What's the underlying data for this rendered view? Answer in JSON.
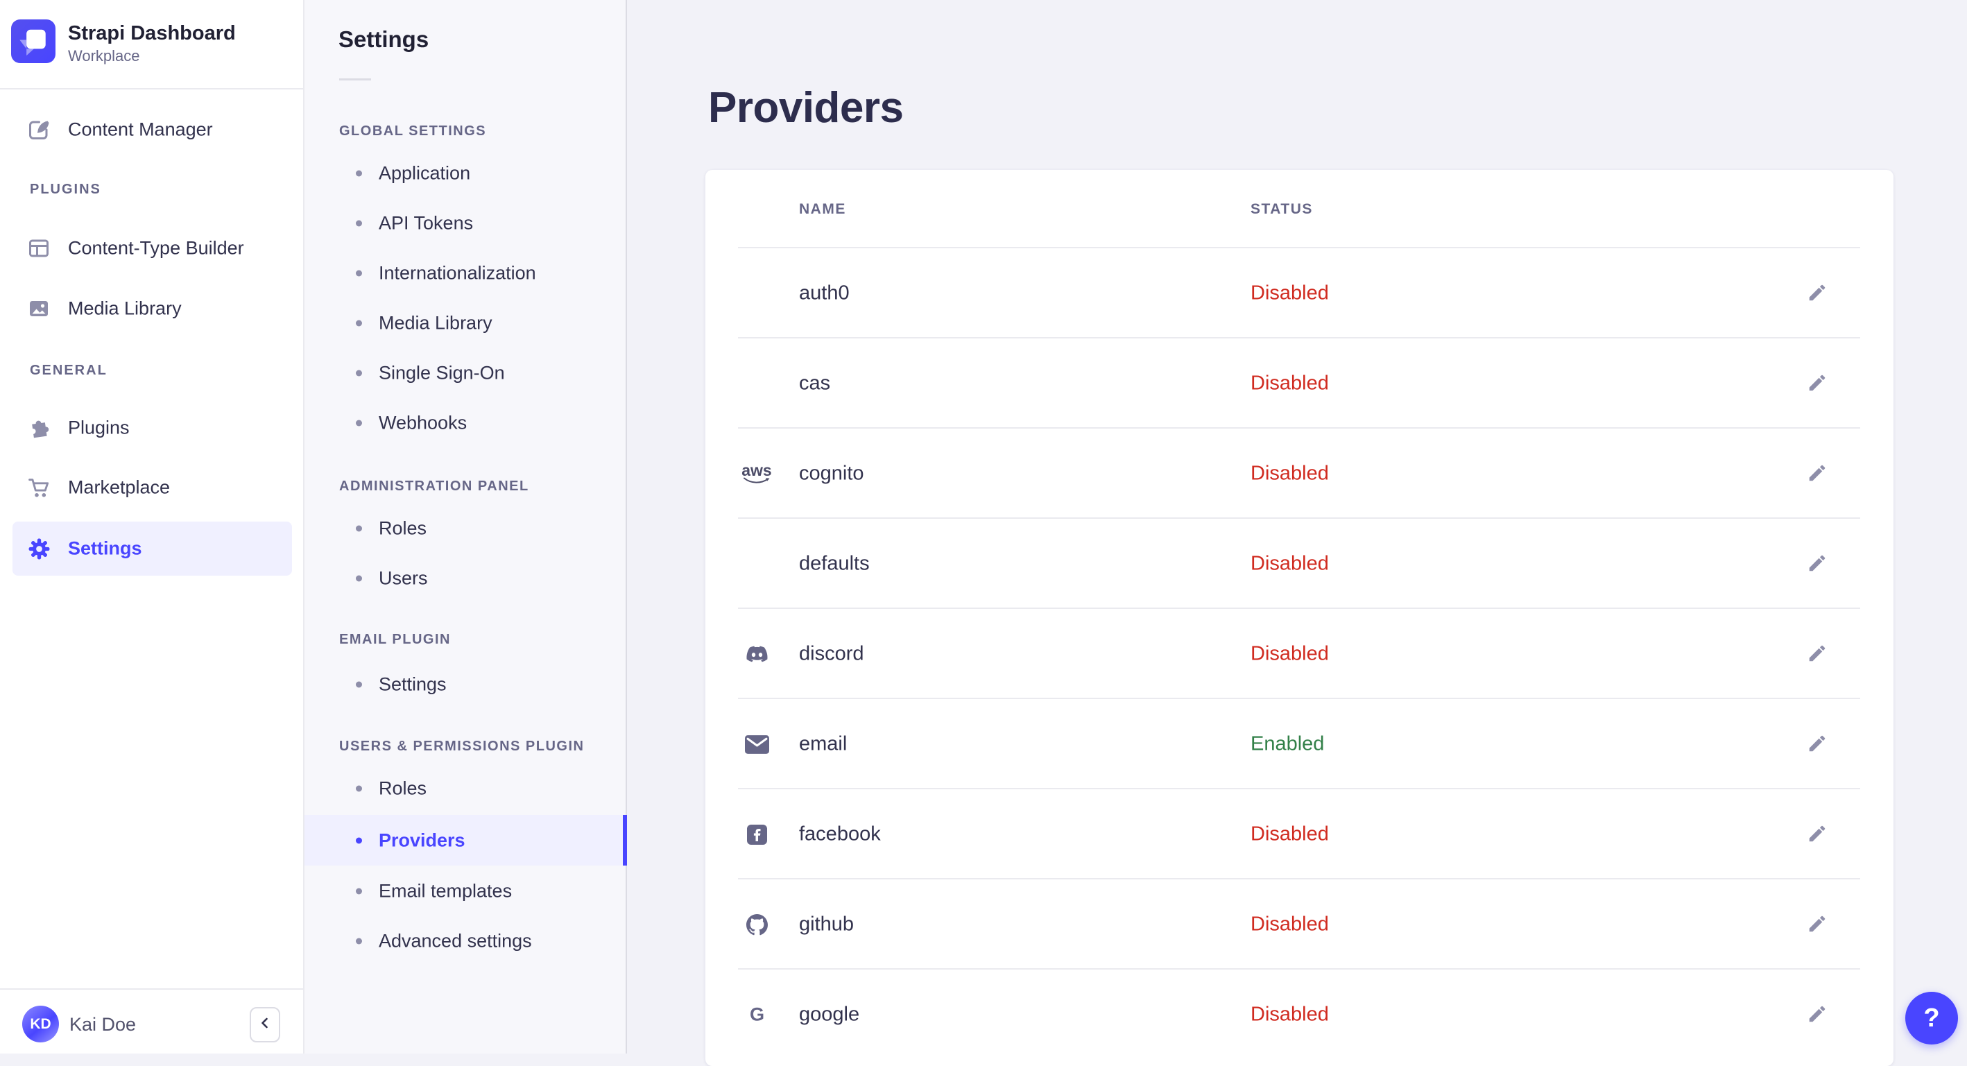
{
  "app": {
    "name": "Strapi Dashboard",
    "workspace": "Workplace"
  },
  "main_nav": {
    "top_items": [
      {
        "label": "Content Manager",
        "icon": "content-manager-icon"
      }
    ],
    "sections": [
      {
        "label": "PLUGINS",
        "items": [
          {
            "label": "Content-Type Builder",
            "icon": "content-type-builder-icon"
          },
          {
            "label": "Media Library",
            "icon": "media-library-icon"
          }
        ]
      },
      {
        "label": "GENERAL",
        "items": [
          {
            "label": "Plugins",
            "icon": "plugins-icon"
          },
          {
            "label": "Marketplace",
            "icon": "marketplace-icon"
          },
          {
            "label": "Settings",
            "icon": "settings-icon",
            "active": true
          }
        ]
      }
    ],
    "user": {
      "name": "Kai Doe",
      "initials": "KD"
    },
    "collapse_icon": "chevron-left-icon"
  },
  "subnav": {
    "title": "Settings",
    "sections": [
      {
        "label": "GLOBAL SETTINGS",
        "items": [
          {
            "label": "Application"
          },
          {
            "label": "API Tokens"
          },
          {
            "label": "Internationalization"
          },
          {
            "label": "Media Library"
          },
          {
            "label": "Single Sign-On"
          },
          {
            "label": "Webhooks"
          }
        ]
      },
      {
        "label": "ADMINISTRATION PANEL",
        "items": [
          {
            "label": "Roles"
          },
          {
            "label": "Users"
          }
        ]
      },
      {
        "label": "EMAIL PLUGIN",
        "items": [
          {
            "label": "Settings"
          }
        ]
      },
      {
        "label": "USERS & PERMISSIONS PLUGIN",
        "items": [
          {
            "label": "Roles"
          },
          {
            "label": "Providers",
            "active": true
          },
          {
            "label": "Email templates"
          },
          {
            "label": "Advanced settings"
          }
        ]
      }
    ]
  },
  "page": {
    "title": "Providers"
  },
  "table": {
    "columns": [
      "NAME",
      "STATUS"
    ],
    "rows": [
      {
        "name": "auth0",
        "icon": null,
        "status": "Disabled"
      },
      {
        "name": "cas",
        "icon": null,
        "status": "Disabled"
      },
      {
        "name": "cognito",
        "icon": "aws-icon",
        "status": "Disabled"
      },
      {
        "name": "defaults",
        "icon": null,
        "status": "Disabled"
      },
      {
        "name": "discord",
        "icon": "discord-icon",
        "status": "Disabled"
      },
      {
        "name": "email",
        "icon": "email-icon",
        "status": "Enabled"
      },
      {
        "name": "facebook",
        "icon": "facebook-icon",
        "status": "Disabled"
      },
      {
        "name": "github",
        "icon": "github-icon",
        "status": "Disabled"
      },
      {
        "name": "google",
        "icon": "google-icon",
        "status": "Disabled"
      }
    ]
  },
  "help": {
    "label": "?"
  },
  "colors": {
    "accent": "#4945ff",
    "accent_light": "#f0f0ff",
    "status_disabled": "#d02b20",
    "status_enabled": "#328048",
    "text_dark": "#32324d",
    "text_gray": "#666687",
    "divider": "#eaeaef"
  }
}
